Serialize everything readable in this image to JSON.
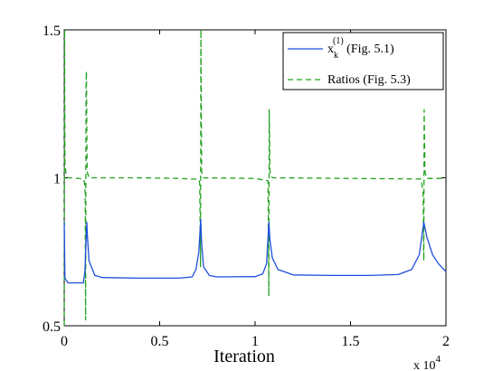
{
  "chart_data": {
    "type": "line",
    "title": "",
    "xlabel": "Iteration",
    "ylabel": "",
    "x_multiplier": "x 10",
    "x_multiplier_exp": "4",
    "xlim": [
      0,
      2
    ],
    "ylim": [
      0.5,
      1.5
    ],
    "xticks": [
      "0",
      "0.5",
      "1",
      "1.5",
      "2"
    ],
    "yticks": [
      "0.5",
      "1",
      "1.5"
    ],
    "grid": false,
    "legend_position": "top-right",
    "series": [
      {
        "name_main": "x",
        "name_sub": "k",
        "name_sup": "(1)",
        "name_rest": " (Fig. 5.1)",
        "color": "#1f4fdc",
        "style": "solid",
        "points": [
          [
            0.0,
            0.85
          ],
          [
            0.004,
            0.66
          ],
          [
            0.02,
            0.645
          ],
          [
            0.1,
            0.645
          ],
          [
            0.108,
            0.68
          ],
          [
            0.114,
            0.78
          ],
          [
            0.118,
            0.85
          ],
          [
            0.122,
            0.8
          ],
          [
            0.13,
            0.72
          ],
          [
            0.16,
            0.67
          ],
          [
            0.2,
            0.663
          ],
          [
            0.4,
            0.661
          ],
          [
            0.6,
            0.661
          ],
          [
            0.67,
            0.665
          ],
          [
            0.69,
            0.69
          ],
          [
            0.705,
            0.75
          ],
          [
            0.715,
            0.86
          ],
          [
            0.72,
            0.78
          ],
          [
            0.73,
            0.7
          ],
          [
            0.76,
            0.67
          ],
          [
            0.8,
            0.665
          ],
          [
            1.0,
            0.666
          ],
          [
            1.04,
            0.675
          ],
          [
            1.06,
            0.71
          ],
          [
            1.072,
            0.85
          ],
          [
            1.078,
            0.79
          ],
          [
            1.09,
            0.73
          ],
          [
            1.12,
            0.69
          ],
          [
            1.2,
            0.672
          ],
          [
            1.4,
            0.67
          ],
          [
            1.6,
            0.67
          ],
          [
            1.75,
            0.673
          ],
          [
            1.82,
            0.69
          ],
          [
            1.86,
            0.74
          ],
          [
            1.884,
            0.85
          ],
          [
            1.9,
            0.8
          ],
          [
            1.93,
            0.74
          ],
          [
            1.96,
            0.71
          ],
          [
            2.0,
            0.683
          ]
        ]
      },
      {
        "name": "Ratios (Fig. 5.3)",
        "color": "#22a11f",
        "style": "dashed",
        "points": [
          [
            0.0,
            0.5
          ],
          [
            0.002,
            1.5
          ],
          [
            0.004,
            1.04
          ],
          [
            0.012,
            1.005
          ],
          [
            0.02,
            1.0
          ],
          [
            0.1,
            0.997
          ],
          [
            0.106,
            0.985
          ],
          [
            0.11,
            0.95
          ],
          [
            0.112,
            0.52
          ],
          [
            0.114,
            1.3
          ],
          [
            0.116,
            1.36
          ],
          [
            0.12,
            1.02
          ],
          [
            0.13,
            1.0
          ],
          [
            0.4,
            1.0
          ],
          [
            0.6,
            0.998
          ],
          [
            0.705,
            0.995
          ],
          [
            0.71,
            0.98
          ],
          [
            0.714,
            0.7
          ],
          [
            0.716,
            1.5
          ],
          [
            0.72,
            1.02
          ],
          [
            0.73,
            1.0
          ],
          [
            1.0,
            0.998
          ],
          [
            1.068,
            0.99
          ],
          [
            1.072,
            0.6
          ],
          [
            1.074,
            1.23
          ],
          [
            1.078,
            1.02
          ],
          [
            1.09,
            1.0
          ],
          [
            1.5,
            0.998
          ],
          [
            1.87,
            0.996
          ],
          [
            1.88,
            0.95
          ],
          [
            1.884,
            0.72
          ],
          [
            1.886,
            1.23
          ],
          [
            1.89,
            1.02
          ],
          [
            1.9,
            0.998
          ],
          [
            2.0,
            0.998
          ]
        ]
      }
    ]
  }
}
